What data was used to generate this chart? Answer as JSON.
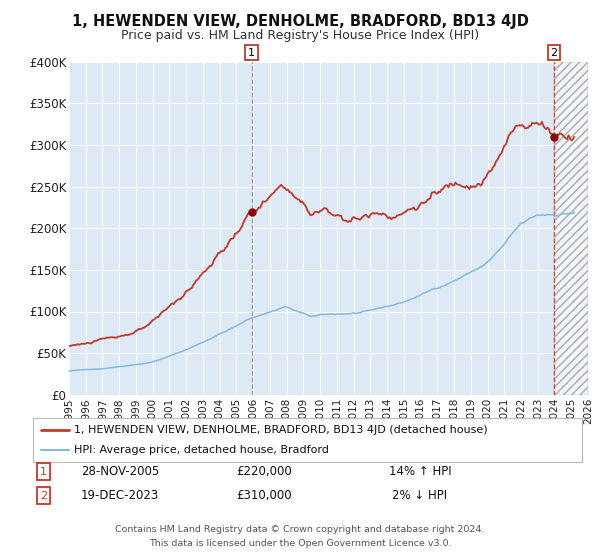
{
  "title": "1, HEWENDEN VIEW, DENHOLME, BRADFORD, BD13 4JD",
  "subtitle": "Price paid vs. HM Land Registry's House Price Index (HPI)",
  "bg_color": "#dde9f5",
  "outer_bg_color": "#f2f2f2",
  "hpi_color": "#88b8e0",
  "price_color": "#c0392b",
  "marker_color": "#8b0000",
  "sale1_year": 2005.91,
  "sale1_price": 220000,
  "sale2_year": 2023.97,
  "sale2_price": 310000,
  "xmin": 1995,
  "xmax": 2026,
  "ymin": 0,
  "ymax": 400000,
  "yticks": [
    0,
    50000,
    100000,
    150000,
    200000,
    250000,
    300000,
    350000,
    400000
  ],
  "legend_label1": "1, HEWENDEN VIEW, DENHOLME, BRADFORD, BD13 4JD (detached house)",
  "legend_label2": "HPI: Average price, detached house, Bradford",
  "annotation1_label": "1",
  "annotation1_date": "28-NOV-2005",
  "annotation1_price": "£220,000",
  "annotation1_hpi": "14% ↑ HPI",
  "annotation2_label": "2",
  "annotation2_date": "19-DEC-2023",
  "annotation2_price": "£310,000",
  "annotation2_hpi": "2% ↓ HPI",
  "footer1": "Contains HM Land Registry data © Crown copyright and database right 2024.",
  "footer2": "This data is licensed under the Open Government Licence v3.0."
}
